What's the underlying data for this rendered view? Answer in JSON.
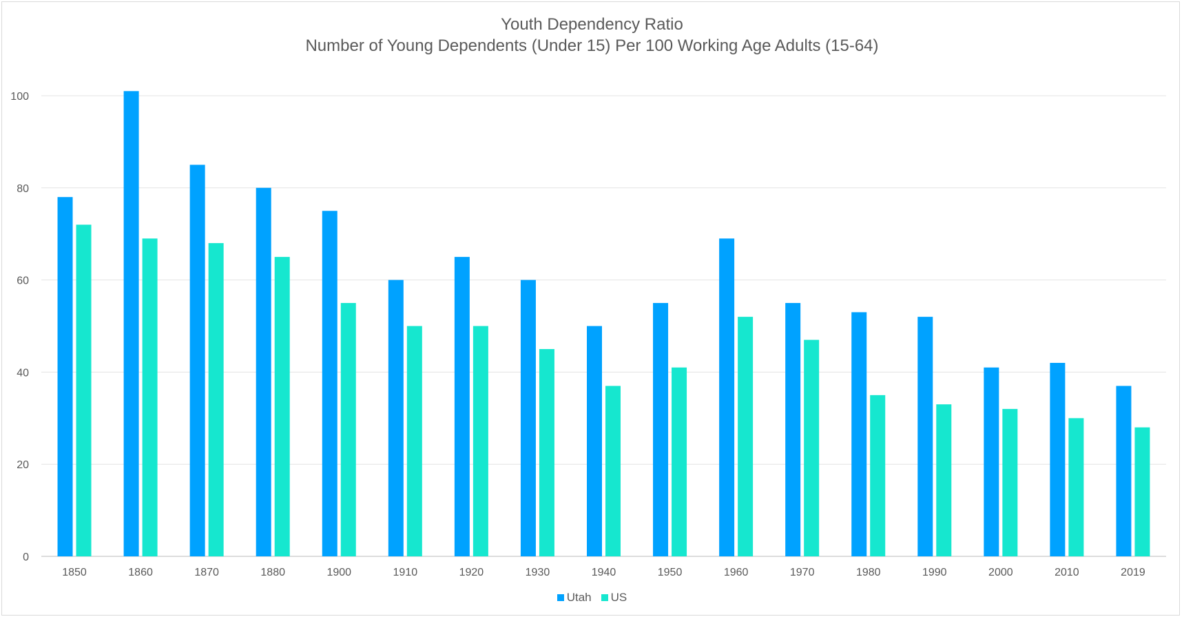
{
  "chart_data": {
    "type": "bar",
    "title": "Youth Dependency Ratio",
    "subtitle": "Number of Young Dependents (Under 15) Per 100 Working Age Adults (15-64)",
    "xlabel": "",
    "ylabel": "",
    "categories": [
      "1850",
      "1860",
      "1870",
      "1880",
      "1900",
      "1910",
      "1920",
      "1930",
      "1940",
      "1950",
      "1960",
      "1970",
      "1980",
      "1990",
      "2000",
      "2010",
      "2019"
    ],
    "series": [
      {
        "name": "Utah",
        "color": "#00A2FF",
        "values": [
          78,
          101,
          85,
          80,
          75,
          60,
          65,
          60,
          50,
          55,
          69,
          55,
          53,
          52,
          41,
          42,
          37
        ]
      },
      {
        "name": "US",
        "color": "#16E7CF",
        "values": [
          72,
          69,
          68,
          65,
          55,
          50,
          50,
          45,
          37,
          41,
          52,
          47,
          35,
          33,
          32,
          30,
          28
        ]
      }
    ],
    "ylim": [
      0,
      100
    ],
    "yticks": [
      0,
      20,
      40,
      60,
      80,
      100
    ],
    "grid": true,
    "legend": "bottom"
  }
}
